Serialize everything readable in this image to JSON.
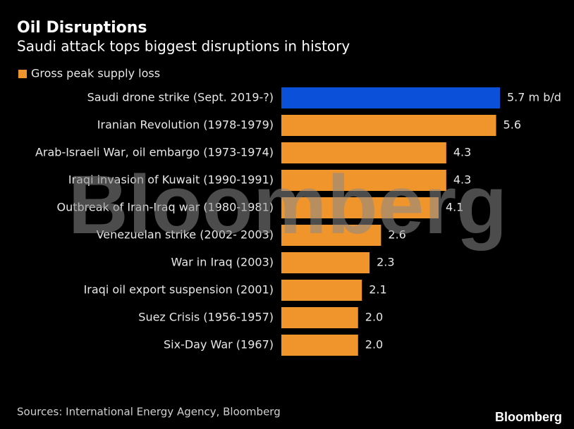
{
  "chart_data": {
    "type": "bar",
    "orientation": "horizontal",
    "title": "Oil Disruptions",
    "subtitle": "Saudi attack tops biggest disruptions in history",
    "categories": [
      "Saudi drone strike (Sept. 2019-?)",
      "Iranian Revolution (1978-1979)",
      "Arab-Israeli War, oil embargo (1973-1974)",
      "Iraqi invasion of Kuwait (1990-1991)",
      "Outbreak of Iran-Iraq war (1980-1981)",
      "Venezuelan strike (2002- 2003)",
      "War in Iraq (2003)",
      "Iraqi oil export suspension (2001)",
      "Suez Crisis (1956-1957)",
      "Six-Day War (1967)"
    ],
    "series": [
      {
        "name": "Gross peak supply loss",
        "color": "#f0952c",
        "values": [
          5.7,
          5.6,
          4.3,
          4.3,
          4.1,
          2.6,
          2.3,
          2.1,
          2.0,
          2.0
        ],
        "value_labels": [
          "5.7 m b/d",
          "5.6",
          "4.3",
          "4.3",
          "4.1",
          "2.6",
          "2.3",
          "2.1",
          "2.0",
          "2.0"
        ],
        "colors": [
          "#0b50d8",
          "#f0952c",
          "#f0952c",
          "#f0952c",
          "#f0952c",
          "#f0952c",
          "#f0952c",
          "#f0952c",
          "#f0952c",
          "#f0952c"
        ]
      }
    ],
    "source": "Sources: International Energy Agency, Bloomberg",
    "watermark": "Bloomberg",
    "logo": "Bloomberg"
  }
}
